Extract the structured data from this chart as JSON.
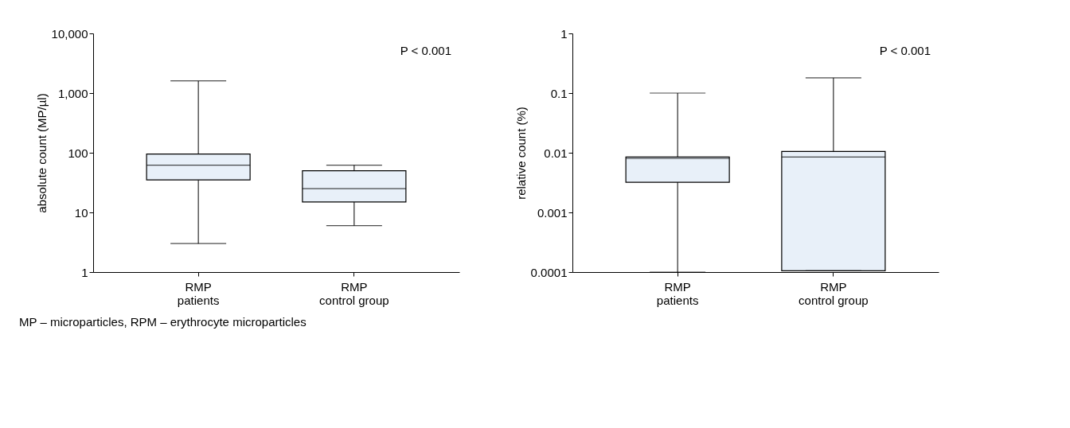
{
  "chart_data": [
    {
      "type": "box",
      "ylabel": "absolute count (MP/µl)",
      "categories": [
        "RMP\npatients",
        "RMP\ncontrol group"
      ],
      "log": "y",
      "ylim": [
        1,
        10000
      ],
      "yticks": [
        1,
        10,
        100,
        {
          "value": 1000,
          "label": "1,000"
        },
        {
          "value": 10000,
          "label": "10,000"
        }
      ],
      "series": [
        {
          "color": "#e8f0f9",
          "boxes": [
            {
              "low": 3,
              "q1": 35,
              "median": 62,
              "q3": 95,
              "high": 1600
            },
            {
              "low": 6,
              "q1": 15,
              "median": 25,
              "q3": 50,
              "high": 62
            }
          ]
        }
      ],
      "annotations": [
        "P < 0.001",
        "MP – microparticles, RPM – erythrocyte microparticles"
      ]
    },
    {
      "type": "box",
      "ylabel": "relative count (%)",
      "categories": [
        "RMP\npatients",
        "RMP\ncontrol group"
      ],
      "log": "y",
      "ylim": [
        0.0001,
        1
      ],
      "yticks": [
        0.0001,
        0.001,
        0.01,
        0.1,
        1
      ],
      "series": [
        {
          "color": "#e8f0f9",
          "boxes": [
            {
              "low": 0.0001,
              "q1": 0.0032,
              "median": 0.008,
              "q3": 0.0085,
              "high": 0.1
            },
            {
              "low": 0.000105,
              "q1": 0.000105,
              "median": 0.0085,
              "q3": 0.0105,
              "high": 0.18
            }
          ]
        }
      ],
      "annotations": [
        "P < 0.001"
      ]
    }
  ]
}
